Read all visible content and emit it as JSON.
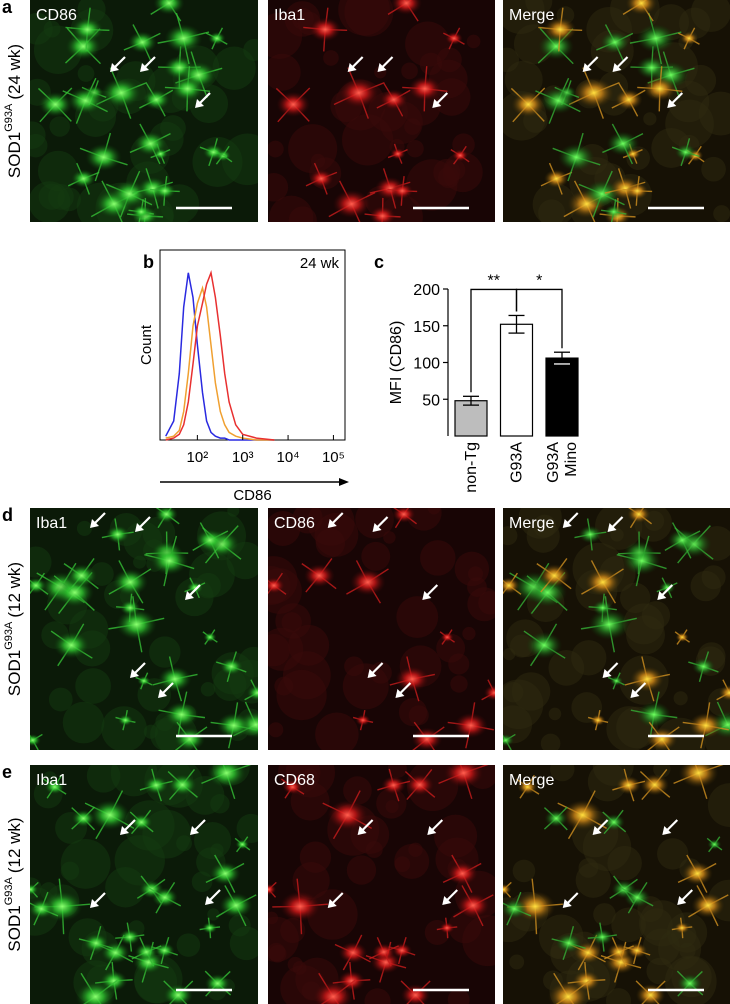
{
  "image_rows": [
    {
      "panel_label": "a",
      "sample": "SOD1",
      "genotype": "G93A",
      "age": "(24 wk)",
      "channels": [
        "CD86",
        "Iba1",
        "Merge"
      ]
    },
    {
      "panel_label": "d",
      "sample": "SOD1",
      "genotype": "G93A",
      "age": "(12 wk)",
      "channels": [
        "Iba1",
        "CD86",
        "Merge"
      ]
    },
    {
      "panel_label": "e",
      "sample": "SOD1",
      "genotype": "G93A",
      "age": "(12 wk)",
      "channels": [
        "Iba1",
        "CD68",
        "Merge"
      ]
    }
  ],
  "chart_data": [
    {
      "type": "line",
      "panel_label": "b",
      "annotation": "24 wk",
      "xlabel": "CD86",
      "ylabel": "Count",
      "xscale": "log",
      "x": [
        20,
        30,
        40,
        50,
        63,
        80,
        100,
        130,
        160,
        200,
        250,
        320,
        400,
        500,
        700,
        1000,
        2000,
        5000
      ],
      "xlim": [
        15,
        180000
      ],
      "xticks": [
        {
          "value": 100,
          "label": "10²"
        },
        {
          "value": 1000,
          "label": "10³"
        },
        {
          "value": 10000,
          "label": "10⁴"
        },
        {
          "value": 100000,
          "label": "10⁵"
        }
      ],
      "ylim": [
        0,
        100
      ],
      "series": [
        {
          "color": "#2a2ae0",
          "values": [
            2,
            10,
            35,
            70,
            88,
            75,
            50,
            25,
            10,
            4,
            2,
            1,
            1,
            0,
            0,
            0,
            0,
            0
          ]
        },
        {
          "color": "#f0a030",
          "values": [
            1,
            2,
            5,
            15,
            35,
            60,
            72,
            80,
            70,
            50,
            30,
            15,
            8,
            4,
            2,
            1,
            0,
            0
          ]
        },
        {
          "color": "#e83030",
          "values": [
            0,
            1,
            3,
            8,
            20,
            40,
            60,
            72,
            82,
            88,
            75,
            55,
            35,
            20,
            8,
            3,
            1,
            0
          ]
        }
      ]
    },
    {
      "type": "bar",
      "panel_label": "c",
      "ylabel": "MFI (CD86)",
      "categories": [
        "non-Tg",
        "G93A",
        "G93A Mino"
      ],
      "values": [
        48,
        152,
        106
      ],
      "errors": [
        6,
        12,
        8
      ],
      "colors": [
        "#bdbdbd",
        "#ffffff",
        "#000000"
      ],
      "ylim": [
        0,
        200
      ],
      "yticks": [
        50,
        100,
        150,
        200
      ],
      "significance": [
        "**",
        "*"
      ]
    }
  ]
}
